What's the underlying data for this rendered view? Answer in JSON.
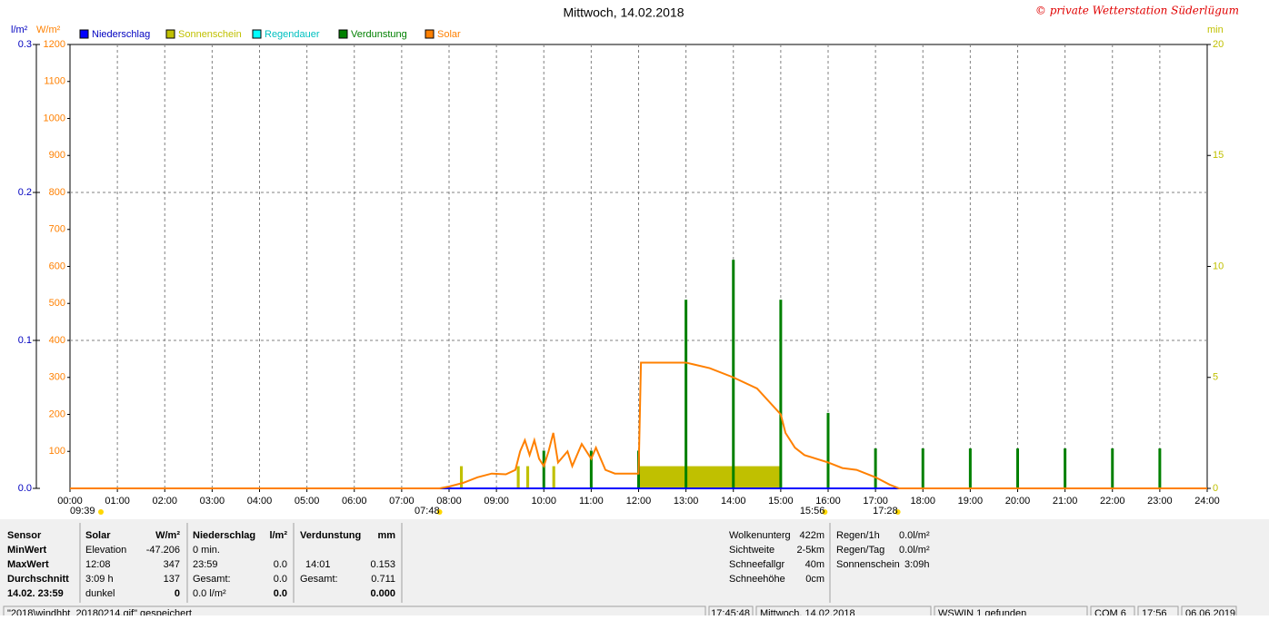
{
  "chart_data": {
    "type": "combo",
    "title": "Mittwoch, 14.02.2018",
    "credit": "© private Wetterstation Süderlügum",
    "y3_label": "l/m²",
    "y_label": "W/m²",
    "y2_label": "min",
    "xlim": [
      0,
      24
    ],
    "xticks": [
      {
        "value": 0,
        "label": "00:00"
      },
      {
        "value": 1,
        "label": "01:00"
      },
      {
        "value": 2,
        "label": "02:00"
      },
      {
        "value": 3,
        "label": "03:00"
      },
      {
        "value": 4,
        "label": "04:00"
      },
      {
        "value": 5,
        "label": "05:00"
      },
      {
        "value": 6,
        "label": "06:00"
      },
      {
        "value": 7,
        "label": "07:00"
      },
      {
        "value": 8,
        "label": "08:00"
      },
      {
        "value": 9,
        "label": "09:00"
      },
      {
        "value": 10,
        "label": "10:00"
      },
      {
        "value": 11,
        "label": "11:00"
      },
      {
        "value": 12,
        "label": "12:00"
      },
      {
        "value": 13,
        "label": "13:00"
      },
      {
        "value": 14,
        "label": "14:00"
      },
      {
        "value": 15,
        "label": "15:00"
      },
      {
        "value": 16,
        "label": "16:00"
      },
      {
        "value": 17,
        "label": "17:00"
      },
      {
        "value": 18,
        "label": "18:00"
      },
      {
        "value": 19,
        "label": "19:00"
      },
      {
        "value": 20,
        "label": "20:00"
      },
      {
        "value": 21,
        "label": "21:00"
      },
      {
        "value": 22,
        "label": "22:00"
      },
      {
        "value": 23,
        "label": "23:00"
      },
      {
        "value": 24,
        "label": "24:00"
      }
    ],
    "ylim": [
      0,
      1200
    ],
    "yticks": [
      100,
      200,
      300,
      400,
      500,
      600,
      700,
      800,
      900,
      1000,
      1100,
      1200
    ],
    "y2lim": [
      0,
      20
    ],
    "y2ticks": [
      0,
      5,
      10,
      15,
      20
    ],
    "y3lim": [
      0,
      0.3
    ],
    "y3ticks": [
      {
        "value": 0,
        "label": "0.0"
      },
      0.1,
      0.2,
      0.3
    ],
    "grid": true,
    "series": [
      {
        "name": "Niederschlag",
        "color": "#0000ff",
        "type": "line",
        "axis": "y3",
        "x": [
          0,
          24
        ],
        "values": [
          0,
          0
        ]
      },
      {
        "name": "Sonnenschein",
        "color": "#c0c000",
        "type": "interval",
        "axis": "y2",
        "x": [
          8.23,
          9.43,
          9.63,
          10.18,
          12.0
        ],
        "x_end": [
          8.29,
          9.49,
          9.69,
          10.24,
          15.0
        ],
        "values": [
          1,
          1,
          1,
          1,
          1
        ]
      },
      {
        "name": "Regendauer",
        "color": "#00ffff",
        "type": "none",
        "values": []
      },
      {
        "name": "Verdunstung",
        "color": "#008000",
        "type": "bar",
        "axis": "y2",
        "x": [
          10,
          11,
          12,
          13,
          14,
          15,
          16,
          17,
          18,
          19,
          20,
          21,
          22,
          23
        ],
        "values": [
          1.7,
          1.7,
          1.7,
          8.5,
          10.3,
          8.5,
          3.4,
          1.8,
          1.8,
          1.8,
          1.8,
          1.8,
          1.8,
          1.8
        ]
      },
      {
        "name": "Solar",
        "color": "#ff8000",
        "type": "line",
        "axis": "y",
        "x": [
          0,
          7.8,
          8.0,
          8.3,
          8.6,
          8.9,
          9.2,
          9.4,
          9.5,
          9.6,
          9.7,
          9.8,
          9.9,
          10.0,
          10.1,
          10.2,
          10.3,
          10.5,
          10.6,
          10.8,
          11.0,
          11.1,
          11.3,
          11.5,
          12.0,
          12.05,
          12.5,
          13.0,
          13.5,
          14.0,
          14.5,
          15.0,
          15.1,
          15.3,
          15.5,
          16.0,
          16.3,
          16.6,
          17.0,
          17.3,
          17.5,
          24
        ],
        "values": [
          0,
          0,
          5,
          15,
          30,
          40,
          38,
          50,
          100,
          130,
          90,
          130,
          80,
          60,
          100,
          150,
          70,
          100,
          60,
          120,
          80,
          110,
          50,
          40,
          40,
          340,
          340,
          340,
          325,
          300,
          270,
          200,
          150,
          110,
          90,
          70,
          55,
          50,
          30,
          10,
          0,
          0
        ]
      }
    ],
    "annotations": [
      {
        "text": "09:39",
        "x": 0
      },
      {
        "text": "07:48",
        "x": 7.8
      },
      {
        "text": "15:56",
        "x": 15.93
      },
      {
        "text": "17:28",
        "x": 17.47
      }
    ]
  },
  "stats": {
    "rows": [
      [
        "Sensor",
        "Solar",
        "W/m²",
        "Niederschlag",
        "l/m²",
        "Verdunstung",
        "mm"
      ],
      [
        "MinWert",
        "Elevation",
        "-47.206",
        "0 min.",
        null,
        null,
        null
      ],
      [
        "MaxWert",
        "12:08",
        "347",
        "23:59",
        "0.0",
        "14:01",
        "0.153"
      ],
      [
        "Durchschnitt",
        "3:09 h",
        "137",
        "Gesamt:",
        "0.0",
        "Gesamt:",
        "0.711"
      ],
      [
        "14.02. 23:59",
        "dunkel",
        "0",
        "0.0 l/m²",
        "0.0",
        null,
        "0.000"
      ]
    ],
    "info_left": [
      [
        "Wolkenunterg",
        "422m"
      ],
      [
        "Sichtweite",
        "2-5km"
      ],
      [
        "Schneefallgr",
        "40m"
      ],
      [
        "Schneehöhe",
        "0cm"
      ]
    ],
    "info_right": [
      [
        "Regen/1h",
        "0.0l/m²"
      ],
      [
        "Regen/Tag",
        "0.0l/m²"
      ],
      [
        "Sonnenschein",
        "3:09h"
      ]
    ]
  },
  "status_bar": [
    "\"2018\\windhbt_20180214.gif\" gespeichert",
    "17:45:48",
    "Mittwoch, 14.02.2018",
    "WSWIN 1 gefunden",
    "COM 6",
    "17:56",
    "06.06.2019"
  ]
}
